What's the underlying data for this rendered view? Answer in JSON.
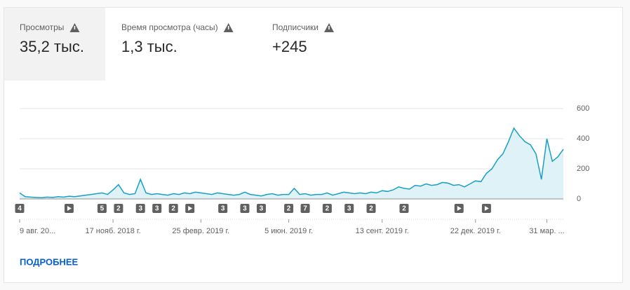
{
  "tabs": [
    {
      "label": "Просмотры",
      "value": "35,2 тыс."
    },
    {
      "label": "Время просмотра (часы)",
      "value": "1,3 тыс."
    },
    {
      "label": "Подписчики",
      "value": "+245"
    }
  ],
  "link": "ПОДРОБНЕЕ",
  "chart_data": {
    "type": "line",
    "color": "#1a9fc4",
    "fill": "#dff2f8",
    "grid": true,
    "categories": [
      "9 авг. 20...",
      null,
      null,
      null,
      null,
      null,
      null,
      null,
      null,
      null,
      null,
      null,
      null,
      null,
      null,
      null,
      null,
      "17 нояб. 2018 г.",
      null,
      null,
      null,
      null,
      null,
      null,
      null,
      null,
      null,
      null,
      null,
      null,
      null,
      null,
      null,
      "25 февр. 2019 г.",
      null,
      null,
      null,
      null,
      null,
      null,
      null,
      null,
      null,
      null,
      null,
      null,
      null,
      null,
      null,
      "5 июн. 2019 г.",
      null,
      null,
      null,
      null,
      null,
      null,
      null,
      null,
      null,
      null,
      null,
      null,
      null,
      null,
      null,
      null,
      "13 сент. 2019 г.",
      null,
      null,
      null,
      null,
      null,
      null,
      null,
      null,
      null,
      null,
      null,
      null,
      null,
      null,
      null,
      null,
      "22 дек. 2019 г.",
      null,
      null,
      null,
      null,
      null,
      null,
      null,
      null,
      null,
      null,
      null,
      null,
      "31 мар. ...",
      null,
      null,
      null
    ],
    "values": [
      40,
      15,
      12,
      10,
      8,
      12,
      10,
      15,
      12,
      18,
      15,
      20,
      25,
      30,
      35,
      40,
      30,
      60,
      95,
      40,
      30,
      35,
      130,
      40,
      30,
      35,
      30,
      25,
      35,
      30,
      40,
      35,
      45,
      40,
      35,
      30,
      40,
      35,
      30,
      25,
      30,
      45,
      30,
      25,
      20,
      30,
      35,
      25,
      30,
      30,
      70,
      30,
      35,
      25,
      30,
      30,
      40,
      25,
      35,
      45,
      40,
      35,
      40,
      35,
      45,
      40,
      55,
      50,
      60,
      80,
      70,
      65,
      90,
      85,
      100,
      90,
      95,
      110,
      105,
      90,
      95,
      80,
      100,
      120,
      115,
      170,
      200,
      260,
      300,
      380,
      470,
      420,
      380,
      360,
      300,
      130,
      400,
      250,
      280,
      330
    ],
    "ylim": [
      0,
      600
    ],
    "yticks": [
      0,
      200,
      400,
      600
    ],
    "markers": [
      {
        "label": "4",
        "at": 0
      },
      {
        "label": null,
        "at": 9
      },
      {
        "label": "5",
        "at": 15
      },
      {
        "label": "2",
        "at": 18
      },
      {
        "label": "3",
        "at": 22
      },
      {
        "label": "3",
        "at": 25
      },
      {
        "label": "2",
        "at": 28
      },
      {
        "label": null,
        "at": 31
      },
      {
        "label": "3",
        "at": 37
      },
      {
        "label": "3",
        "at": 41
      },
      {
        "label": "3",
        "at": 44
      },
      {
        "label": "2",
        "at": 49
      },
      {
        "label": "7",
        "at": 52
      },
      {
        "label": "2",
        "at": 56
      },
      {
        "label": "3",
        "at": 60
      },
      {
        "label": "2",
        "at": 64
      },
      {
        "label": "2",
        "at": 70
      },
      {
        "label": null,
        "at": 80
      },
      {
        "label": null,
        "at": 85
      }
    ]
  }
}
